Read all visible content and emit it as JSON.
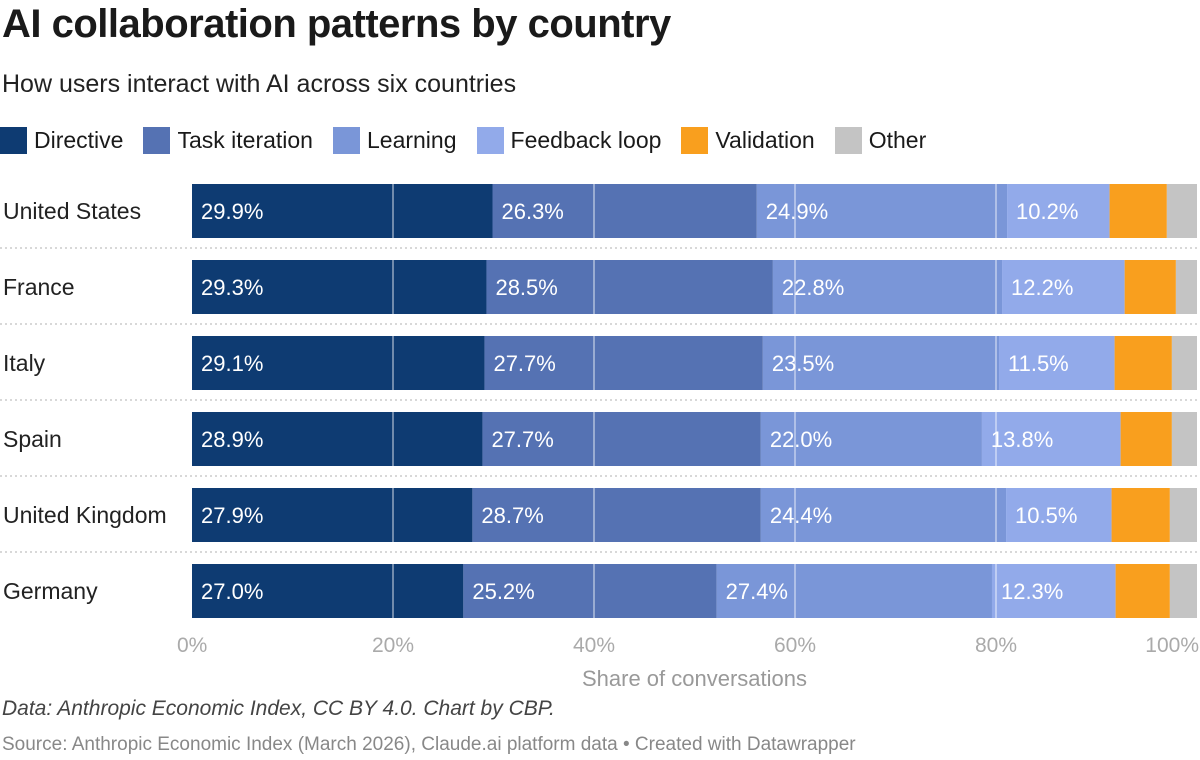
{
  "title": "AI collaboration patterns by country",
  "subtitle": "How users interact with AI across six countries",
  "footer": {
    "note": "Data: Anthropic Economic Index, CC BY 4.0. Chart by CBP.",
    "source": "Source: Anthropic Economic Index (March 2026), Claude.ai platform data • Created with Datawrapper"
  },
  "chart_data": {
    "type": "bar",
    "orientation": "horizontal-stacked",
    "xlabel": "Share of conversations",
    "xlim": [
      0,
      100
    ],
    "ticks": [
      "0%",
      "20%",
      "40%",
      "60%",
      "80%",
      "100%"
    ],
    "tick_values": [
      0,
      20,
      40,
      60,
      80,
      100
    ],
    "legend_placement": "top-left",
    "categories": [
      "United States",
      "France",
      "Italy",
      "Spain",
      "United Kingdom",
      "Germany"
    ],
    "series": [
      {
        "name": "Directive",
        "color": "#0e3b72",
        "values": [
          29.9,
          29.3,
          29.1,
          28.9,
          27.9,
          27.0
        ],
        "labeled": true
      },
      {
        "name": "Task iteration",
        "color": "#5572b3",
        "values": [
          26.3,
          28.5,
          27.7,
          27.7,
          28.7,
          25.2
        ],
        "labeled": true
      },
      {
        "name": "Learning",
        "color": "#7a96d8",
        "values": [
          24.9,
          22.8,
          23.5,
          22.0,
          24.4,
          27.4
        ],
        "labeled": true
      },
      {
        "name": "Feedback loop",
        "color": "#92aaea",
        "values": [
          10.2,
          12.2,
          11.5,
          13.8,
          10.5,
          12.3
        ],
        "labeled": true
      },
      {
        "name": "Validation",
        "color": "#f99f1e",
        "values": [
          5.7,
          5.1,
          5.7,
          5.1,
          5.8,
          5.4
        ],
        "labeled": false
      },
      {
        "name": "Other",
        "color": "#c4c4c4",
        "values": [
          3.0,
          2.1,
          2.5,
          2.5,
          2.7,
          2.7
        ],
        "labeled": false
      }
    ]
  }
}
